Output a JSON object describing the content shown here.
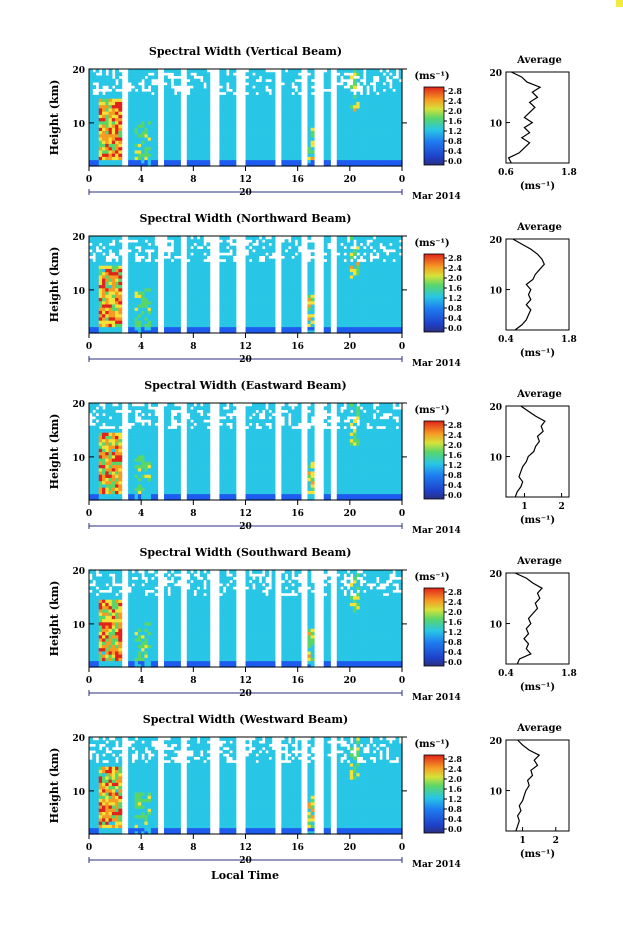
{
  "figure": {
    "xlabel": "Local Time",
    "date_label": "Mar 2014",
    "day_label": "20",
    "colorbar_unit": "(ms⁻¹)",
    "colorbar_ticks": [
      "0.0",
      "0.4",
      "0.8",
      "1.2",
      "1.6",
      "2.0",
      "2.4",
      "2.8"
    ],
    "ylabel": "Height (km)",
    "avg_title": "Average",
    "avg_xlabel": "(ms⁻¹)",
    "colors": {
      "dark": "#2b2f80",
      "blue": "#1e5cf0",
      "cyan": "#29c6e6",
      "green": "#59d66a",
      "yellow": "#f2e23a",
      "orange": "#f59a23",
      "red": "#e0231b",
      "accent_yellow": "#f2ea40"
    }
  },
  "chart_data": [
    {
      "type": "heatmap",
      "title": "Spectral Width (Vertical Beam)",
      "xlabel": "",
      "ylabel": "Height (km)",
      "xlim": [
        0,
        24
      ],
      "ylim": [
        2,
        20
      ],
      "x_ticks": [
        "0",
        "4",
        "8",
        "12",
        "16",
        "20",
        "0"
      ],
      "y_ticks": [
        "10",
        "20"
      ],
      "colorbar_range": [
        0.0,
        2.8
      ],
      "average": {
        "title": "Average",
        "xlim": [
          0.6,
          1.8
        ],
        "x_ticks": [
          "0.6",
          "1.8"
        ],
        "height": [
          2,
          3,
          4,
          5,
          6,
          7,
          8,
          9,
          10,
          11,
          12,
          13,
          14,
          15,
          16,
          17,
          18,
          19,
          20
        ],
        "values": [
          0.7,
          0.65,
          0.85,
          0.95,
          1.05,
          0.9,
          1.05,
          0.95,
          1.1,
          0.95,
          1.05,
          1.15,
          1.05,
          1.2,
          1.1,
          1.25,
          1.0,
          0.9,
          0.7
        ]
      }
    },
    {
      "type": "heatmap",
      "title": "Spectral Width (Northward Beam)",
      "xlabel": "",
      "ylabel": "Height (km)",
      "xlim": [
        0,
        24
      ],
      "ylim": [
        2,
        20
      ],
      "x_ticks": [
        "0",
        "4",
        "8",
        "12",
        "16",
        "20",
        "0"
      ],
      "y_ticks": [
        "10",
        "20"
      ],
      "colorbar_range": [
        0.0,
        2.8
      ],
      "average": {
        "title": "Average",
        "xlim": [
          0.4,
          1.8
        ],
        "x_ticks": [
          "0.4",
          "1.8"
        ],
        "height": [
          2,
          3,
          4,
          5,
          6,
          7,
          8,
          9,
          10,
          11,
          12,
          13,
          14,
          15,
          16,
          17,
          18,
          19,
          20
        ],
        "values": [
          0.6,
          0.75,
          0.85,
          0.9,
          0.95,
          0.85,
          0.95,
          0.9,
          0.95,
          0.85,
          1.0,
          1.05,
          1.15,
          1.25,
          1.2,
          1.1,
          0.95,
          0.75,
          0.55
        ]
      }
    },
    {
      "type": "heatmap",
      "title": "Spectral Width (Eastward Beam)",
      "xlabel": "",
      "ylabel": "Height (km)",
      "xlim": [
        0,
        24
      ],
      "ylim": [
        2,
        20
      ],
      "x_ticks": [
        "0",
        "4",
        "8",
        "12",
        "16",
        "20",
        "0"
      ],
      "y_ticks": [
        "10",
        "20"
      ],
      "colorbar_range": [
        0.0,
        2.8
      ],
      "average": {
        "title": "Average",
        "xlim": [
          0.5,
          2.2
        ],
        "x_ticks": [
          "1",
          "2"
        ],
        "height": [
          2,
          3,
          4,
          5,
          6,
          7,
          8,
          9,
          10,
          11,
          12,
          13,
          14,
          15,
          16,
          17,
          18,
          19,
          20
        ],
        "values": [
          0.75,
          0.8,
          0.9,
          0.95,
          0.85,
          0.9,
          0.95,
          1.05,
          1.1,
          1.25,
          1.3,
          1.4,
          1.35,
          1.5,
          1.45,
          1.55,
          1.3,
          1.1,
          0.9
        ]
      }
    },
    {
      "type": "heatmap",
      "title": "Spectral Width (Southward Beam)",
      "xlabel": "",
      "ylabel": "Height (km)",
      "xlim": [
        0,
        24
      ],
      "ylim": [
        2,
        20
      ],
      "x_ticks": [
        "0",
        "4",
        "8",
        "12",
        "16",
        "20",
        "0"
      ],
      "y_ticks": [
        "10",
        "20"
      ],
      "colorbar_range": [
        0.0,
        2.8
      ],
      "average": {
        "title": "Average",
        "xlim": [
          0.4,
          1.8
        ],
        "x_ticks": [
          "0.4",
          "1.8"
        ],
        "height": [
          2,
          3,
          4,
          5,
          6,
          7,
          8,
          9,
          10,
          11,
          12,
          13,
          14,
          15,
          16,
          17,
          18,
          19,
          20
        ],
        "values": [
          0.65,
          0.7,
          0.95,
          0.85,
          0.9,
          0.8,
          0.9,
          0.85,
          0.95,
          0.9,
          1.0,
          1.1,
          1.05,
          1.15,
          1.1,
          1.2,
          1.0,
          0.85,
          0.6
        ]
      }
    },
    {
      "type": "heatmap",
      "title": "Spectral Width (Westward Beam)",
      "xlabel": "Local Time",
      "ylabel": "Height (km)",
      "xlim": [
        0,
        24
      ],
      "ylim": [
        2,
        20
      ],
      "x_ticks": [
        "0",
        "4",
        "8",
        "12",
        "16",
        "20",
        "0"
      ],
      "y_ticks": [
        "10",
        "20"
      ],
      "colorbar_range": [
        0.0,
        2.8
      ],
      "average": {
        "title": "Average",
        "xlim": [
          0.5,
          2.4
        ],
        "x_ticks": [
          "1",
          "2"
        ],
        "height": [
          2,
          3,
          4,
          5,
          6,
          7,
          8,
          9,
          10,
          11,
          12,
          13,
          14,
          15,
          16,
          17,
          18,
          19,
          20
        ],
        "values": [
          0.8,
          0.85,
          0.9,
          0.85,
          0.95,
          0.9,
          1.0,
          1.05,
          1.1,
          1.2,
          1.15,
          1.3,
          1.25,
          1.45,
          1.35,
          1.5,
          1.2,
          1.0,
          0.85
        ]
      }
    }
  ]
}
